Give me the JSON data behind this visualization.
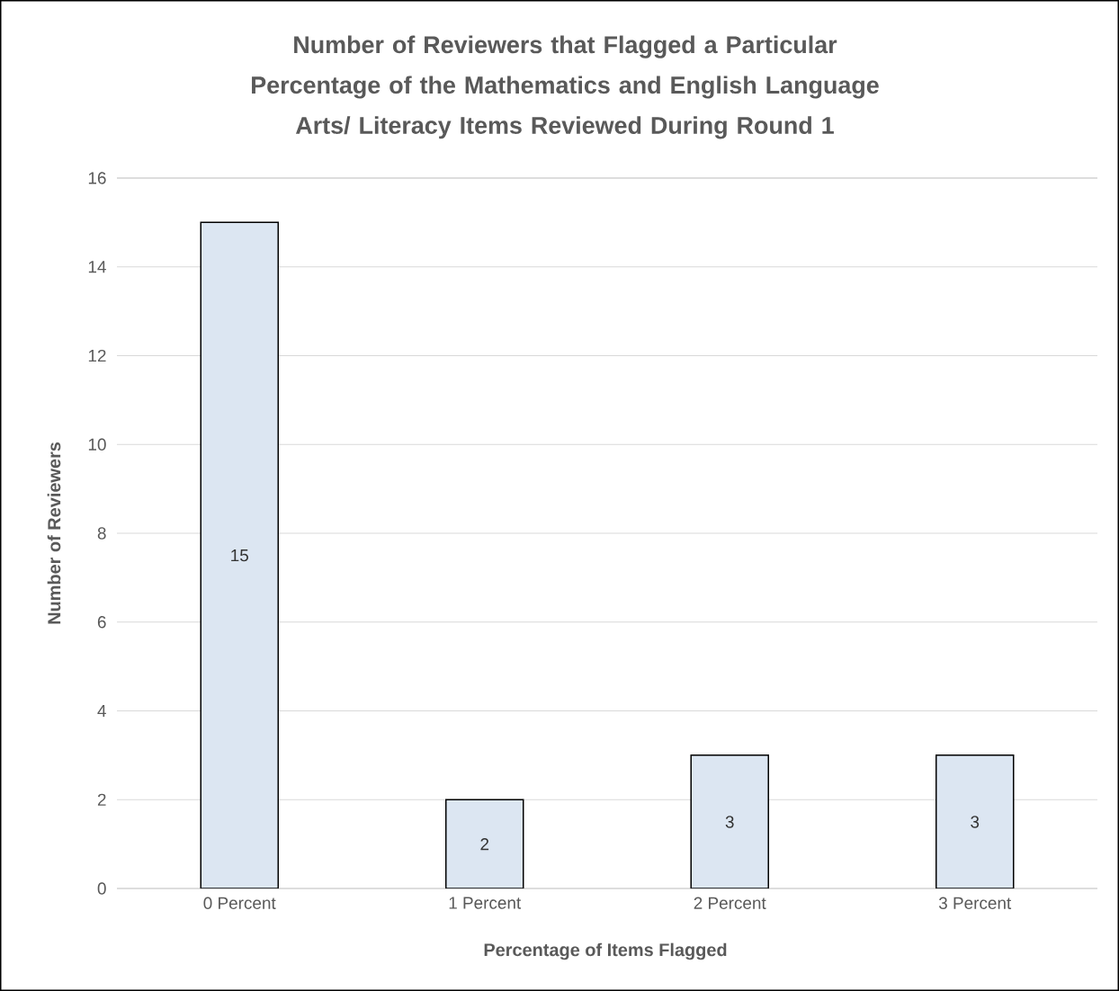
{
  "chart_data": {
    "type": "bar",
    "title": "Number of Reviewers that Flagged a Particular Percentage of the Mathematics and English Language Arts/ Literacy Items Reviewed During Round 1",
    "xlabel": "Percentage of Items Flagged",
    "ylabel": "Number of Reviewers",
    "categories": [
      "0 Percent",
      "1 Percent",
      "2 Percent",
      "3 Percent"
    ],
    "values": [
      15,
      2,
      3,
      3
    ],
    "color": "#dce6f2",
    "ylim": [
      0,
      16
    ],
    "yticks": [
      0,
      2,
      4,
      6,
      8,
      10,
      12,
      14,
      16
    ],
    "grid": "y",
    "data_labels": true
  }
}
